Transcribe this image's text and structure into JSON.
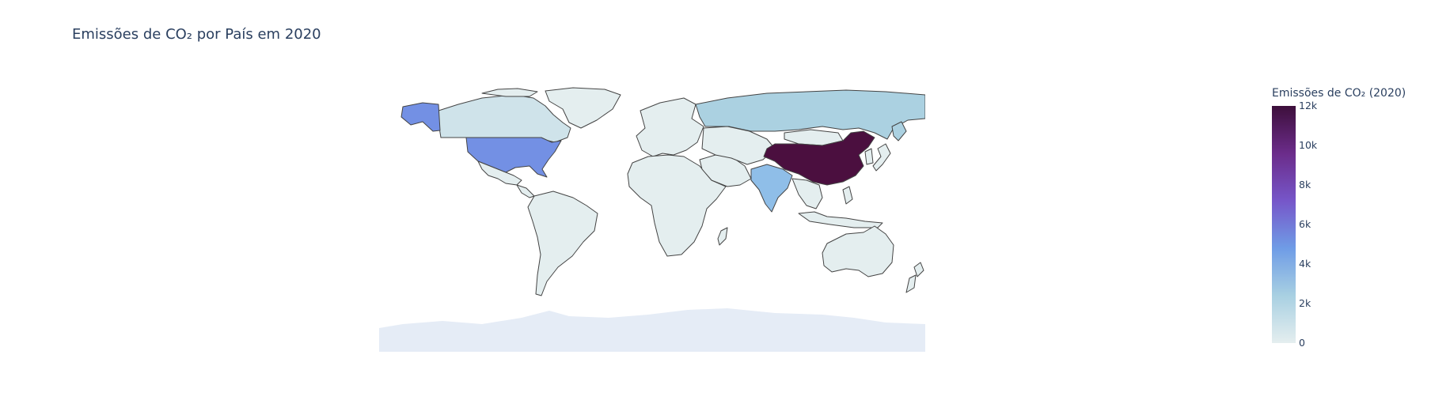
{
  "title": "Emissões de CO₂ por País em 2020",
  "colorbar": {
    "title": "Emissões de CO₂ (2020)",
    "range": [
      0,
      12000
    ],
    "ticks": [
      {
        "value": 0,
        "label": "0"
      },
      {
        "value": 2000,
        "label": "2k"
      },
      {
        "value": 4000,
        "label": "4k"
      },
      {
        "value": 6000,
        "label": "6k"
      },
      {
        "value": 8000,
        "label": "8k"
      },
      {
        "value": 10000,
        "label": "10k"
      },
      {
        "value": 12000,
        "label": "12k"
      }
    ],
    "colorscale": [
      "#e4eeef",
      "#a8d0e2",
      "#6f9ce6",
      "#7656c9",
      "#6b2c8a",
      "#3d0f3b"
    ]
  },
  "map_colors": {
    "border": "#444444",
    "land_no_data": "#e5ecf6",
    "low": "#e4eeef",
    "canada": "#cfe3ea",
    "usa": "#7390e4",
    "russia": "#abd1e1",
    "india": "#8fbee8",
    "china": "#4b0f3f"
  }
}
